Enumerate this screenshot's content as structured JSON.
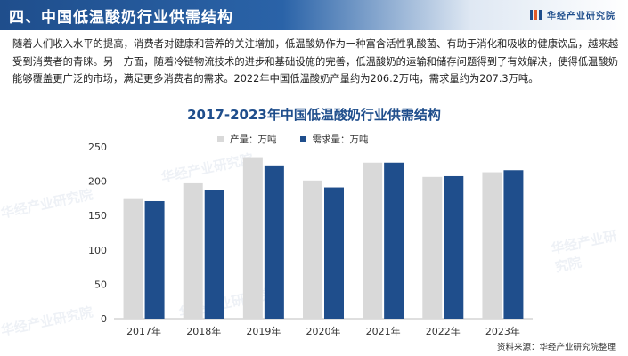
{
  "header": {
    "title": "四、中国低温酸奶行业供需结构",
    "logo_text": "华经产业研究院"
  },
  "description": "随着人们收入水平的提高，消费者对健康和营养的关注增加，低温酸奶作为一种富含活性乳酸菌、有助于消化和吸收的健康饮品，越来越受到消费者的青睐。另一方面，随着冷链物流技术的进步和基础设施的完善，低温酸奶的运输和储存问题得到了有效解决，使得低温酸奶能够覆盖更广泛的市场，满足更多消费者的需求。2022年中国低温酸奶产量约为206.2万吨，需求量约为207.3万吨。",
  "source": "资料来源：华经产业研究院整理",
  "watermark": "华经产业研究院",
  "colors": {
    "header": "#1f4e8c",
    "production": "#d9d9d9",
    "demand": "#1f4e8c"
  },
  "chart_data": {
    "type": "bar",
    "title": "2017-2023年中国低温酸奶行业供需结构",
    "categories": [
      "2017年",
      "2018年",
      "2019年",
      "2020年",
      "2021年",
      "2022年",
      "2023年"
    ],
    "series": [
      {
        "name": "产量：万吨",
        "values": [
          174,
          197,
          235,
          201,
          227,
          206.2,
          213
        ]
      },
      {
        "name": "需求量：万吨",
        "values": [
          171,
          187,
          223,
          191,
          227,
          207.3,
          216
        ]
      }
    ],
    "ylim": [
      0,
      250
    ],
    "yticks": [
      0,
      50,
      100,
      150,
      200,
      250
    ],
    "legend_position": "top",
    "grid": false
  }
}
